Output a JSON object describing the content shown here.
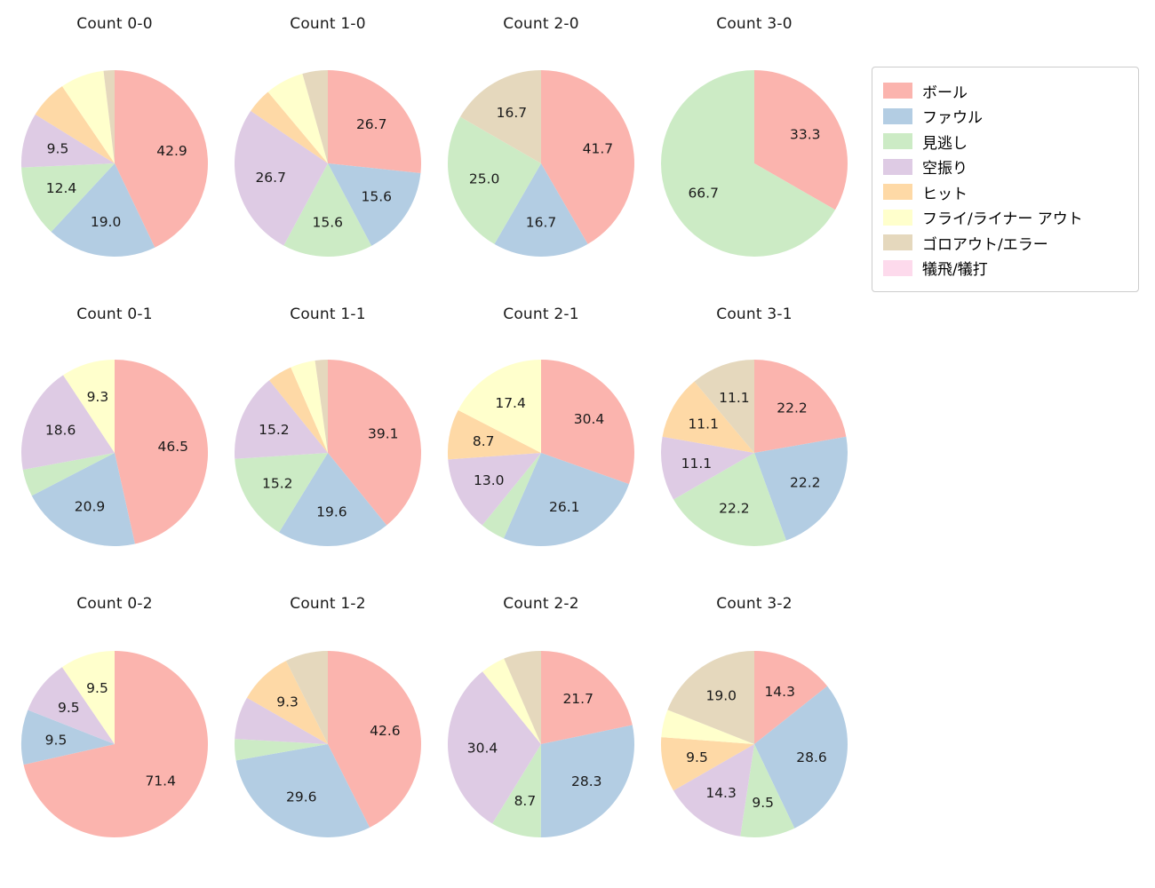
{
  "figure": {
    "background": "#ffffff",
    "text_color": "#1a1a1a"
  },
  "legend": {
    "items": [
      {
        "label": "ボール",
        "color": "#fbb4ae"
      },
      {
        "label": "ファウル",
        "color": "#b3cde3"
      },
      {
        "label": "見逃し",
        "color": "#ccebc5"
      },
      {
        "label": "空振り",
        "color": "#decbe4"
      },
      {
        "label": "ヒット",
        "color": "#fed9a6"
      },
      {
        "label": "フライ/ライナー アウト",
        "color": "#ffffcc"
      },
      {
        "label": "ゴロアウト/エラー",
        "color": "#e5d8bd"
      },
      {
        "label": "犠飛/犠打",
        "color": "#fddaec"
      }
    ]
  },
  "chart_data": [
    {
      "type": "pie",
      "title": "Count 0-0",
      "units": "percent",
      "start_angle_deg": 90,
      "direction": "clockwise",
      "slices": [
        {
          "category": "ボール",
          "value": 42.9,
          "label": "42.9"
        },
        {
          "category": "ファウル",
          "value": 19.0,
          "label": "19.0"
        },
        {
          "category": "見逃し",
          "value": 12.4,
          "label": "12.4"
        },
        {
          "category": "空振り",
          "value": 9.5,
          "label": "9.5"
        },
        {
          "category": "ヒット",
          "value": 6.7,
          "label": ""
        },
        {
          "category": "フライ/ライナー アウト",
          "value": 7.6,
          "label": ""
        },
        {
          "category": "ゴロアウト/エラー",
          "value": 1.9,
          "label": ""
        }
      ]
    },
    {
      "type": "pie",
      "title": "Count 1-0",
      "units": "percent",
      "start_angle_deg": 90,
      "direction": "clockwise",
      "slices": [
        {
          "category": "ボール",
          "value": 26.7,
          "label": "26.7"
        },
        {
          "category": "ファウル",
          "value": 15.6,
          "label": "15.6"
        },
        {
          "category": "見逃し",
          "value": 15.6,
          "label": "15.6"
        },
        {
          "category": "空振り",
          "value": 26.7,
          "label": "26.7"
        },
        {
          "category": "ヒット",
          "value": 4.4,
          "label": ""
        },
        {
          "category": "フライ/ライナー アウト",
          "value": 6.7,
          "label": ""
        },
        {
          "category": "ゴロアウト/エラー",
          "value": 4.4,
          "label": ""
        }
      ]
    },
    {
      "type": "pie",
      "title": "Count 2-0",
      "units": "percent",
      "start_angle_deg": 90,
      "direction": "clockwise",
      "slices": [
        {
          "category": "ボール",
          "value": 41.7,
          "label": "41.7"
        },
        {
          "category": "ファウル",
          "value": 16.7,
          "label": "16.7"
        },
        {
          "category": "見逃し",
          "value": 25.0,
          "label": "25.0"
        },
        {
          "category": "ゴロアウト/エラー",
          "value": 16.7,
          "label": "16.7"
        }
      ]
    },
    {
      "type": "pie",
      "title": "Count 3-0",
      "units": "percent",
      "start_angle_deg": 90,
      "direction": "clockwise",
      "slices": [
        {
          "category": "ボール",
          "value": 33.3,
          "label": "33.3"
        },
        {
          "category": "見逃し",
          "value": 66.7,
          "label": "66.7"
        }
      ]
    },
    {
      "type": "pie",
      "title": "Count 0-1",
      "units": "percent",
      "start_angle_deg": 90,
      "direction": "clockwise",
      "slices": [
        {
          "category": "ボール",
          "value": 46.5,
          "label": "46.5"
        },
        {
          "category": "ファウル",
          "value": 20.9,
          "label": "20.9"
        },
        {
          "category": "見逃し",
          "value": 4.7,
          "label": ""
        },
        {
          "category": "空振り",
          "value": 18.6,
          "label": "18.6"
        },
        {
          "category": "フライ/ライナー アウト",
          "value": 9.3,
          "label": "9.3"
        }
      ]
    },
    {
      "type": "pie",
      "title": "Count 1-1",
      "units": "percent",
      "start_angle_deg": 90,
      "direction": "clockwise",
      "slices": [
        {
          "category": "ボール",
          "value": 39.1,
          "label": "39.1"
        },
        {
          "category": "ファウル",
          "value": 19.6,
          "label": "19.6"
        },
        {
          "category": "見逃し",
          "value": 15.2,
          "label": "15.2"
        },
        {
          "category": "空振り",
          "value": 15.2,
          "label": "15.2"
        },
        {
          "category": "ヒット",
          "value": 4.3,
          "label": ""
        },
        {
          "category": "フライ/ライナー アウト",
          "value": 4.3,
          "label": ""
        },
        {
          "category": "ゴロアウト/エラー",
          "value": 2.2,
          "label": ""
        }
      ]
    },
    {
      "type": "pie",
      "title": "Count 2-1",
      "units": "percent",
      "start_angle_deg": 90,
      "direction": "clockwise",
      "slices": [
        {
          "category": "ボール",
          "value": 30.4,
          "label": "30.4"
        },
        {
          "category": "ファウル",
          "value": 26.1,
          "label": "26.1"
        },
        {
          "category": "見逃し",
          "value": 4.3,
          "label": ""
        },
        {
          "category": "空振り",
          "value": 13.0,
          "label": "13.0"
        },
        {
          "category": "ヒット",
          "value": 8.7,
          "label": "8.7"
        },
        {
          "category": "フライ/ライナー アウト",
          "value": 17.4,
          "label": "17.4"
        }
      ]
    },
    {
      "type": "pie",
      "title": "Count 3-1",
      "units": "percent",
      "start_angle_deg": 90,
      "direction": "clockwise",
      "slices": [
        {
          "category": "ボール",
          "value": 22.2,
          "label": "22.2"
        },
        {
          "category": "ファウル",
          "value": 22.2,
          "label": "22.2"
        },
        {
          "category": "見逃し",
          "value": 22.2,
          "label": "22.2"
        },
        {
          "category": "空振り",
          "value": 11.1,
          "label": "11.1"
        },
        {
          "category": "ヒット",
          "value": 11.1,
          "label": "11.1"
        },
        {
          "category": "ゴロアウト/エラー",
          "value": 11.1,
          "label": "11.1"
        }
      ]
    },
    {
      "type": "pie",
      "title": "Count 0-2",
      "units": "percent",
      "start_angle_deg": 90,
      "direction": "clockwise",
      "slices": [
        {
          "category": "ボール",
          "value": 71.4,
          "label": "71.4"
        },
        {
          "category": "ファウル",
          "value": 9.5,
          "label": "9.5"
        },
        {
          "category": "空振り",
          "value": 9.5,
          "label": "9.5"
        },
        {
          "category": "フライ/ライナー アウト",
          "value": 9.5,
          "label": "9.5"
        }
      ]
    },
    {
      "type": "pie",
      "title": "Count 1-2",
      "units": "percent",
      "start_angle_deg": 90,
      "direction": "clockwise",
      "slices": [
        {
          "category": "ボール",
          "value": 42.6,
          "label": "42.6"
        },
        {
          "category": "ファウル",
          "value": 29.6,
          "label": "29.6"
        },
        {
          "category": "見逃し",
          "value": 3.7,
          "label": ""
        },
        {
          "category": "空振り",
          "value": 7.4,
          "label": ""
        },
        {
          "category": "ヒット",
          "value": 9.3,
          "label": "9.3"
        },
        {
          "category": "ゴロアウト/エラー",
          "value": 7.4,
          "label": ""
        }
      ]
    },
    {
      "type": "pie",
      "title": "Count 2-2",
      "units": "percent",
      "start_angle_deg": 90,
      "direction": "clockwise",
      "slices": [
        {
          "category": "ボール",
          "value": 21.7,
          "label": "21.7"
        },
        {
          "category": "ファウル",
          "value": 28.3,
          "label": "28.3"
        },
        {
          "category": "見逃し",
          "value": 8.7,
          "label": "8.7"
        },
        {
          "category": "空振り",
          "value": 30.4,
          "label": "30.4"
        },
        {
          "category": "フライ/ライナー アウト",
          "value": 4.3,
          "label": ""
        },
        {
          "category": "ゴロアウト/エラー",
          "value": 6.5,
          "label": ""
        }
      ]
    },
    {
      "type": "pie",
      "title": "Count 3-2",
      "units": "percent",
      "start_angle_deg": 90,
      "direction": "clockwise",
      "slices": [
        {
          "category": "ボール",
          "value": 14.3,
          "label": "14.3"
        },
        {
          "category": "ファウル",
          "value": 28.6,
          "label": "28.6"
        },
        {
          "category": "見逃し",
          "value": 9.5,
          "label": "9.5"
        },
        {
          "category": "空振り",
          "value": 14.3,
          "label": "14.3"
        },
        {
          "category": "ヒット",
          "value": 9.5,
          "label": "9.5"
        },
        {
          "category": "フライ/ライナー アウト",
          "value": 4.8,
          "label": ""
        },
        {
          "category": "ゴロアウト/エラー",
          "value": 19.0,
          "label": "19.0"
        }
      ]
    }
  ]
}
